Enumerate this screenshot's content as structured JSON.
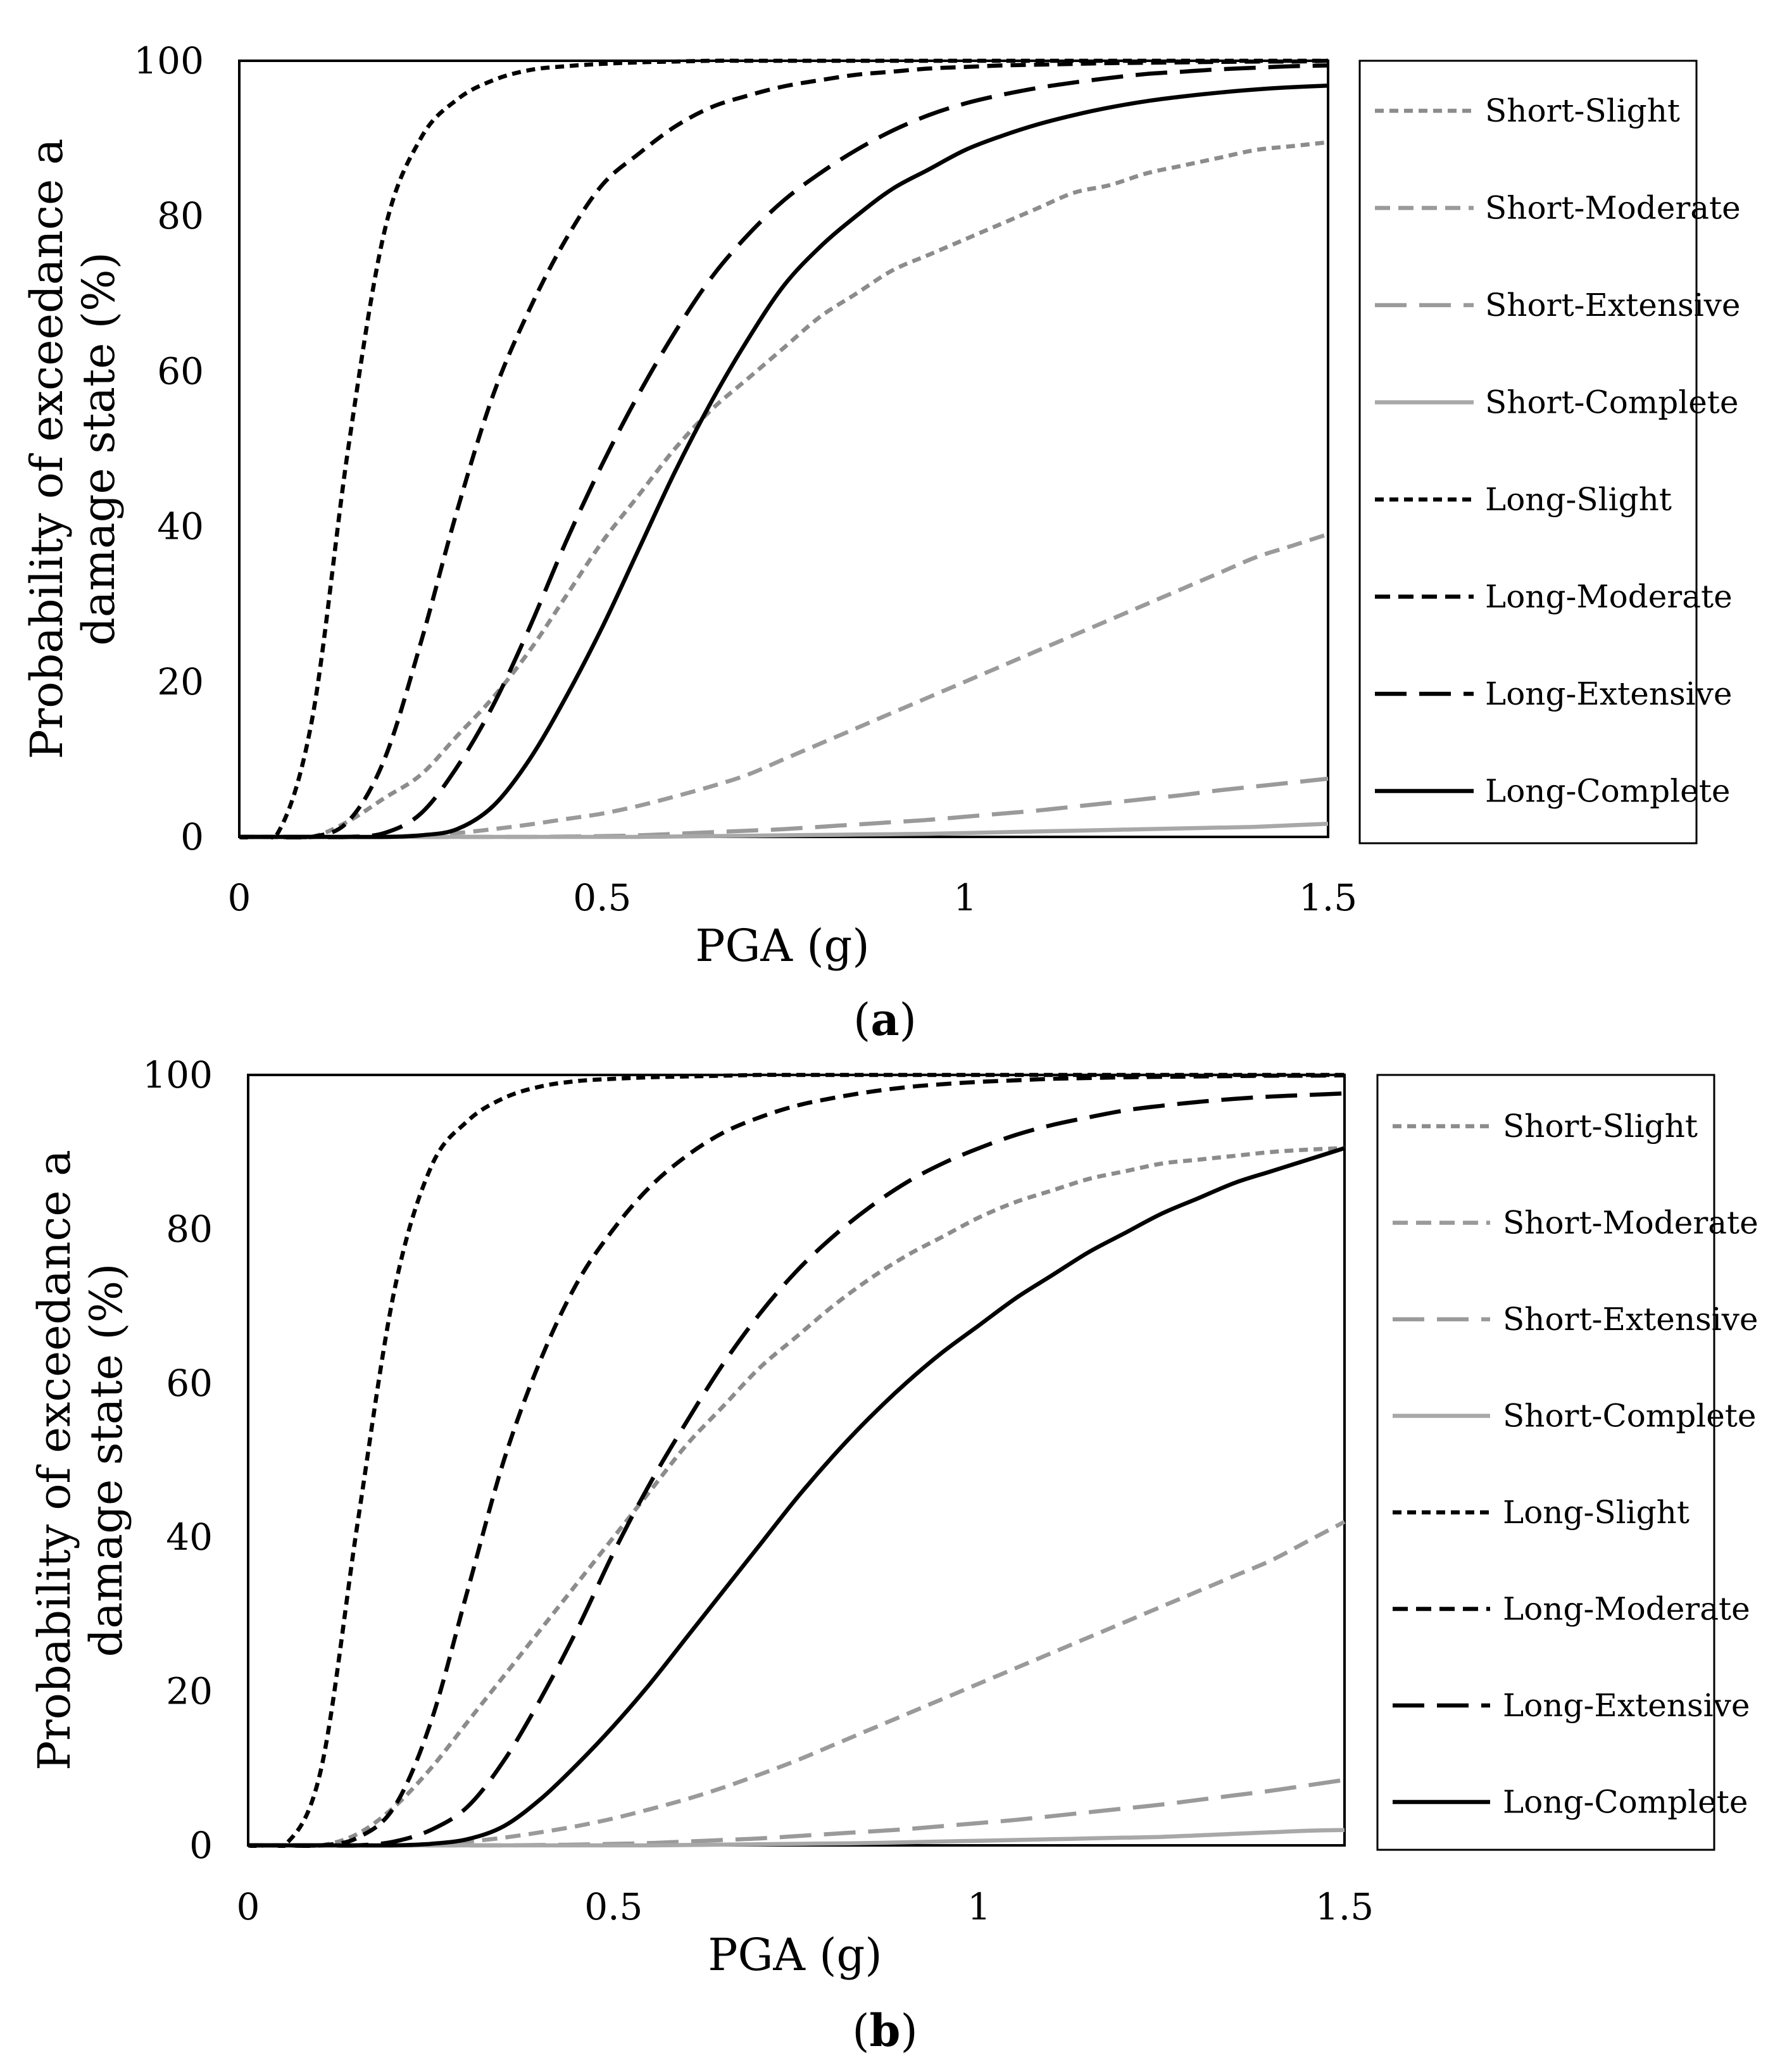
{
  "chart_data": [
    {
      "type": "line",
      "panel": "a",
      "caption_open": "(",
      "caption_letter": "a",
      "caption_close": ")",
      "xlabel": "PGA (g)",
      "ylabel_line1": "Probability of exceedance a",
      "ylabel_line2": "damage state (%)",
      "xlim": [
        0,
        1.5
      ],
      "ylim": [
        0,
        100
      ],
      "xticks": [
        0,
        0.5,
        1,
        1.5
      ],
      "xtick_labels": [
        "0",
        "0.5",
        "1",
        "1.5"
      ],
      "yticks": [
        0,
        20,
        40,
        60,
        80,
        100
      ],
      "ytick_labels": [
        "0",
        "20",
        "40",
        "60",
        "80",
        "100"
      ],
      "legend_position": "right",
      "x": [
        0,
        0.05,
        0.1,
        0.15,
        0.2,
        0.25,
        0.3,
        0.35,
        0.4,
        0.45,
        0.5,
        0.55,
        0.6,
        0.65,
        0.7,
        0.75,
        0.8,
        0.85,
        0.9,
        0.95,
        1.0,
        1.05,
        1.1,
        1.15,
        1.2,
        1.25,
        1.3,
        1.35,
        1.4,
        1.45,
        1.5
      ],
      "series": [
        {
          "name": "Short-Slight",
          "values": [
            0,
            0,
            0,
            2,
            5,
            8,
            13,
            18,
            24,
            31,
            38,
            44,
            50,
            55,
            59,
            63,
            67,
            70,
            73,
            75,
            77,
            79,
            81,
            83,
            84,
            85.5,
            86.5,
            87.5,
            88.5,
            89,
            89.5
          ]
        },
        {
          "name": "Short-Moderate",
          "values": [
            0,
            0,
            0,
            0,
            0,
            0.2,
            0.5,
            1,
            1.6,
            2.3,
            3,
            4,
            5.2,
            6.5,
            8,
            10,
            12,
            14,
            16,
            18,
            20,
            22,
            24,
            26,
            28,
            30,
            32,
            34,
            36,
            37.5,
            39
          ]
        },
        {
          "name": "Short-Extensive",
          "values": [
            0,
            0,
            0,
            0,
            0,
            0,
            0,
            0,
            0,
            0.05,
            0.1,
            0.2,
            0.4,
            0.6,
            0.8,
            1.0,
            1.3,
            1.6,
            1.9,
            2.2,
            2.6,
            3.0,
            3.4,
            3.9,
            4.4,
            4.9,
            5.4,
            6.0,
            6.5,
            7.0,
            7.5
          ]
        },
        {
          "name": "Short-Complete",
          "values": [
            0,
            0,
            0,
            0,
            0,
            0,
            0,
            0,
            0,
            0,
            0,
            0,
            0.05,
            0.1,
            0.15,
            0.2,
            0.25,
            0.3,
            0.35,
            0.4,
            0.5,
            0.6,
            0.7,
            0.8,
            0.9,
            1.0,
            1.1,
            1.2,
            1.3,
            1.5,
            1.7
          ]
        },
        {
          "name": "Long-Slight",
          "values": [
            0,
            0,
            15,
            50,
            78,
            90,
            95,
            97.5,
            98.8,
            99.3,
            99.6,
            99.8,
            99.9,
            100,
            100,
            100,
            100,
            100,
            100,
            100,
            100,
            100,
            100,
            100,
            100,
            100,
            100,
            100,
            100,
            100,
            100
          ]
        },
        {
          "name": "Long-Moderate",
          "values": [
            0,
            0,
            0,
            2,
            10,
            25,
            42,
            57,
            68,
            77,
            84,
            88,
            91.5,
            94,
            95.5,
            96.7,
            97.5,
            98.2,
            98.6,
            99,
            99.2,
            99.4,
            99.5,
            99.6,
            99.7,
            99.75,
            99.8,
            99.85,
            99.9,
            99.9,
            100
          ]
        },
        {
          "name": "Long-Extensive",
          "values": [
            0,
            0,
            0,
            0,
            0.5,
            3,
            9,
            17,
            27,
            38,
            48,
            57,
            65,
            72,
            77.5,
            82,
            85.5,
            88.5,
            91,
            93,
            94.5,
            95.6,
            96.5,
            97.2,
            97.8,
            98.3,
            98.6,
            98.9,
            99.1,
            99.3,
            99.4
          ]
        },
        {
          "name": "Long-Complete",
          "values": [
            0,
            0,
            0,
            0,
            0,
            0.2,
            1,
            4,
            10,
            18,
            27,
            37,
            47,
            56,
            64,
            71,
            76,
            80,
            83.5,
            86,
            88.5,
            90.3,
            91.8,
            93,
            94,
            94.8,
            95.4,
            95.9,
            96.3,
            96.6,
            96.8
          ]
        }
      ]
    },
    {
      "type": "line",
      "panel": "b",
      "caption_open": "(",
      "caption_letter": "b",
      "caption_close": ")",
      "xlabel": "PGA (g)",
      "ylabel_line1": "Probability of exceedance a",
      "ylabel_line2": "damage state (%)",
      "xlim": [
        0,
        1.5
      ],
      "ylim": [
        0,
        100
      ],
      "xticks": [
        0,
        0.5,
        1,
        1.5
      ],
      "xtick_labels": [
        "0",
        "0.5",
        "1",
        "1.5"
      ],
      "yticks": [
        0,
        20,
        40,
        60,
        80,
        100
      ],
      "ytick_labels": [
        "0",
        "20",
        "40",
        "60",
        "80",
        "100"
      ],
      "legend_position": "right",
      "x": [
        0,
        0.05,
        0.1,
        0.15,
        0.2,
        0.25,
        0.3,
        0.35,
        0.4,
        0.45,
        0.5,
        0.55,
        0.6,
        0.65,
        0.7,
        0.75,
        0.8,
        0.85,
        0.9,
        0.95,
        1.0,
        1.05,
        1.1,
        1.15,
        1.2,
        1.25,
        1.3,
        1.35,
        1.4,
        1.45,
        1.5
      ],
      "series": [
        {
          "name": "Short-Slight",
          "values": [
            0,
            0,
            0,
            1.5,
            5,
            10,
            16,
            22,
            28,
            34,
            40,
            46,
            52,
            57,
            62,
            66,
            70,
            73.5,
            76.5,
            79,
            81.5,
            83.5,
            85,
            86.5,
            87.5,
            88.5,
            89,
            89.5,
            90,
            90.3,
            90.5
          ]
        },
        {
          "name": "Short-Moderate",
          "values": [
            0,
            0,
            0,
            0,
            0,
            0.2,
            0.5,
            1,
            1.7,
            2.5,
            3.5,
            4.7,
            6,
            7.5,
            9.2,
            11,
            13,
            15,
            17,
            19,
            21,
            23,
            25,
            27,
            29,
            31,
            33,
            35,
            37,
            39.5,
            42
          ]
        },
        {
          "name": "Short-Extensive",
          "values": [
            0,
            0,
            0,
            0,
            0,
            0,
            0,
            0,
            0.05,
            0.1,
            0.2,
            0.3,
            0.5,
            0.7,
            0.9,
            1.2,
            1.5,
            1.8,
            2.1,
            2.5,
            2.9,
            3.3,
            3.8,
            4.3,
            4.8,
            5.3,
            5.9,
            6.5,
            7.1,
            7.8,
            8.5
          ]
        },
        {
          "name": "Short-Complete",
          "values": [
            0,
            0,
            0,
            0,
            0,
            0,
            0,
            0,
            0,
            0,
            0,
            0,
            0.05,
            0.1,
            0.15,
            0.2,
            0.25,
            0.3,
            0.4,
            0.5,
            0.6,
            0.7,
            0.8,
            0.9,
            1.0,
            1.1,
            1.3,
            1.5,
            1.7,
            1.9,
            2.0
          ]
        },
        {
          "name": "Long-Slight",
          "values": [
            0,
            0,
            10,
            42,
            72,
            88,
            94,
            97,
            98.5,
            99.2,
            99.5,
            99.7,
            99.8,
            99.9,
            100,
            100,
            100,
            100,
            100,
            100,
            100,
            100,
            100,
            100,
            100,
            100,
            100,
            100,
            100,
            100,
            100
          ]
        },
        {
          "name": "Long-Moderate",
          "values": [
            0,
            0,
            0,
            1,
            5,
            16,
            33,
            50,
            63,
            73,
            80,
            85.5,
            89.5,
            92.5,
            94.5,
            96,
            97,
            97.8,
            98.4,
            98.8,
            99.1,
            99.3,
            99.5,
            99.6,
            99.7,
            99.75,
            99.8,
            99.85,
            99.9,
            99.9,
            99.95
          ]
        },
        {
          "name": "Long-Extensive",
          "values": [
            0,
            0,
            0,
            0,
            0.5,
            2,
            5,
            11,
            19,
            28,
            38,
            47,
            55,
            62.5,
            69,
            74.5,
            79,
            82.8,
            86,
            88.5,
            90.5,
            92.2,
            93.5,
            94.5,
            95.4,
            96,
            96.5,
            96.9,
            97.2,
            97.4,
            97.6
          ]
        },
        {
          "name": "Long-Complete",
          "values": [
            0,
            0,
            0,
            0,
            0,
            0.2,
            0.8,
            2.5,
            6,
            10.5,
            15.5,
            21,
            27,
            33,
            39,
            45,
            50.5,
            55.5,
            60,
            64,
            67.5,
            71,
            74,
            77,
            79.5,
            82,
            84,
            86,
            87.5,
            89,
            90.5
          ]
        }
      ]
    }
  ],
  "series_styles": [
    {
      "name": "Short-Slight",
      "color": "#8c8c8c",
      "dash": "short"
    },
    {
      "name": "Short-Moderate",
      "color": "#9a9a9a",
      "dash": "medium"
    },
    {
      "name": "Short-Extensive",
      "color": "#9a9a9a",
      "dash": "long"
    },
    {
      "name": "Short-Complete",
      "color": "#a8a8a8",
      "dash": "solid"
    },
    {
      "name": "Long-Slight",
      "color": "#000000",
      "dash": "short"
    },
    {
      "name": "Long-Moderate",
      "color": "#000000",
      "dash": "medium"
    },
    {
      "name": "Long-Extensive",
      "color": "#000000",
      "dash": "long"
    },
    {
      "name": "Long-Complete",
      "color": "#000000",
      "dash": "solid"
    }
  ]
}
